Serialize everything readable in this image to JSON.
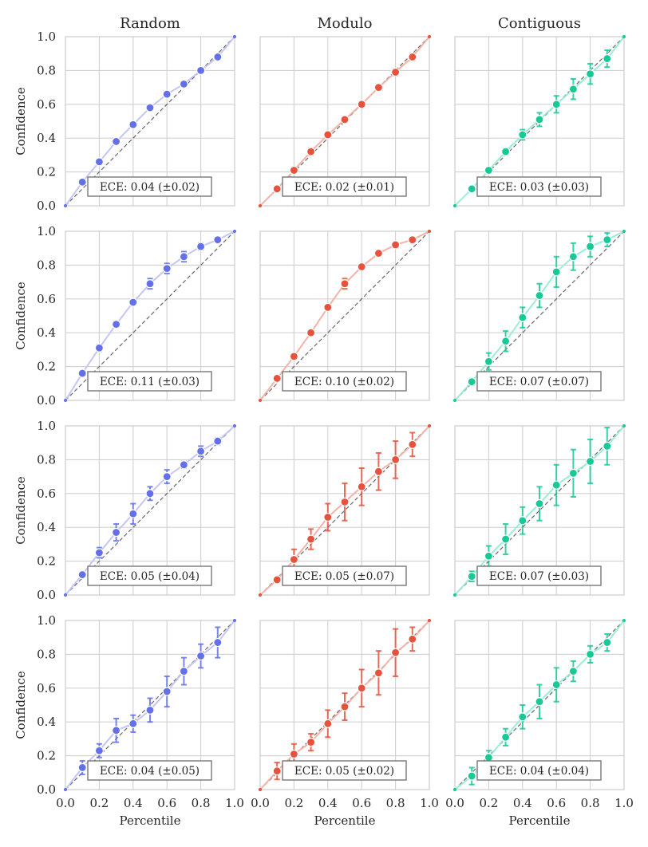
{
  "colors": {
    "Random": {
      "point": "#6370ea",
      "line": "#c3c6f6"
    },
    "Modulo": {
      "point": "#e6523b",
      "line": "#f4b3a7"
    },
    "Contiguous": {
      "point": "#18c997",
      "line": "#9bedd6"
    },
    "diagonal": "#666666",
    "grid": "#d0d0d0",
    "frame": "#cccccc"
  },
  "chart_data": {
    "type": "line",
    "layout": "grid 4 rows x 3 columns, shared axes",
    "column_titles": [
      "Random",
      "Modulo",
      "Contiguous"
    ],
    "xlabel": "Percentile",
    "ylabel": "Confidence",
    "xlim": [
      0,
      1
    ],
    "ylim": [
      0,
      1
    ],
    "xticks": [
      "0.0",
      "0.2",
      "0.4",
      "0.6",
      "0.8",
      "1.0"
    ],
    "yticks": [
      "0.0",
      "0.2",
      "0.4",
      "0.6",
      "0.8",
      "1.0"
    ],
    "grid": true,
    "reference_line": "dashed diagonal y = x",
    "x": [
      0.1,
      0.2,
      0.3,
      0.4,
      0.5,
      0.6,
      0.7,
      0.8,
      0.9
    ],
    "panels": [
      {
        "row": 0,
        "col": "Random",
        "ece": "ECE: 0.04 (±0.02)",
        "y": [
          0.14,
          0.26,
          0.38,
          0.48,
          0.58,
          0.66,
          0.72,
          0.8,
          0.88
        ],
        "err": [
          0,
          0,
          0,
          0,
          0,
          0,
          0,
          0,
          0.01
        ]
      },
      {
        "row": 0,
        "col": "Modulo",
        "ece": "ECE: 0.02 (±0.01)",
        "y": [
          0.1,
          0.21,
          0.32,
          0.42,
          0.51,
          0.6,
          0.7,
          0.79,
          0.88
        ],
        "err": [
          0,
          0,
          0.02,
          0,
          0,
          0,
          0,
          0.02,
          0.02
        ]
      },
      {
        "row": 0,
        "col": "Contiguous",
        "ece": "ECE: 0.03 (±0.03)",
        "y": [
          0.1,
          0.21,
          0.32,
          0.42,
          0.51,
          0.6,
          0.69,
          0.78,
          0.87
        ],
        "err": [
          0,
          0,
          0.02,
          0.03,
          0.04,
          0.05,
          0.06,
          0.06,
          0.05
        ]
      },
      {
        "row": 1,
        "col": "Random",
        "ece": "ECE: 0.11 (±0.03)",
        "y": [
          0.16,
          0.31,
          0.45,
          0.58,
          0.69,
          0.78,
          0.85,
          0.91,
          0.95
        ],
        "err": [
          0,
          0.02,
          0,
          0,
          0.03,
          0.03,
          0.03,
          0.02,
          0.01
        ]
      },
      {
        "row": 1,
        "col": "Modulo",
        "ece": "ECE: 0.10 (±0.02)",
        "y": [
          0.13,
          0.26,
          0.4,
          0.55,
          0.69,
          0.79,
          0.87,
          0.92,
          0.95
        ],
        "err": [
          0,
          0,
          0,
          0,
          0.03,
          0,
          0,
          0,
          0
        ]
      },
      {
        "row": 1,
        "col": "Contiguous",
        "ece": "ECE: 0.07 (±0.07)",
        "y": [
          0.11,
          0.23,
          0.35,
          0.49,
          0.62,
          0.76,
          0.85,
          0.91,
          0.95
        ],
        "err": [
          0.02,
          0.05,
          0.06,
          0.06,
          0.07,
          0.09,
          0.08,
          0.06,
          0.04
        ]
      },
      {
        "row": 2,
        "col": "Random",
        "ece": "ECE: 0.05 (±0.04)",
        "y": [
          0.12,
          0.25,
          0.37,
          0.48,
          0.6,
          0.7,
          0.77,
          0.85,
          0.91
        ],
        "err": [
          0,
          0.03,
          0.05,
          0.06,
          0.04,
          0.04,
          0.02,
          0.03,
          0.02
        ]
      },
      {
        "row": 2,
        "col": "Modulo",
        "ece": "ECE: 0.05 (±0.07)",
        "y": [
          0.09,
          0.21,
          0.33,
          0.46,
          0.55,
          0.64,
          0.73,
          0.8,
          0.89
        ],
        "err": [
          0,
          0.06,
          0.06,
          0.08,
          0.11,
          0.11,
          0.11,
          0.11,
          0.07
        ]
      },
      {
        "row": 2,
        "col": "Contiguous",
        "ece": "ECE: 0.07 (±0.03)",
        "y": [
          0.11,
          0.23,
          0.33,
          0.44,
          0.54,
          0.65,
          0.72,
          0.79,
          0.88
        ],
        "err": [
          0.03,
          0.06,
          0.09,
          0.08,
          0.1,
          0.12,
          0.14,
          0.13,
          0.11
        ]
      },
      {
        "row": 3,
        "col": "Random",
        "ece": "ECE: 0.04 (±0.05)",
        "y": [
          0.13,
          0.23,
          0.35,
          0.39,
          0.47,
          0.58,
          0.7,
          0.79,
          0.87
        ],
        "err": [
          0.04,
          0.04,
          0.07,
          0.05,
          0.07,
          0.09,
          0.08,
          0.07,
          0.09
        ]
      },
      {
        "row": 3,
        "col": "Modulo",
        "ece": "ECE: 0.05 (±0.02)",
        "y": [
          0.11,
          0.21,
          0.28,
          0.39,
          0.49,
          0.6,
          0.69,
          0.81,
          0.89
        ],
        "err": [
          0.05,
          0.06,
          0.05,
          0.08,
          0.08,
          0.11,
          0.13,
          0.14,
          0.07
        ]
      },
      {
        "row": 3,
        "col": "Contiguous",
        "ece": "ECE: 0.04 (±0.04)",
        "y": [
          0.08,
          0.19,
          0.31,
          0.43,
          0.52,
          0.62,
          0.7,
          0.8,
          0.87
        ],
        "err": [
          0.05,
          0.04,
          0.05,
          0.07,
          0.1,
          0.1,
          0.06,
          0.05,
          0.05
        ]
      }
    ]
  }
}
